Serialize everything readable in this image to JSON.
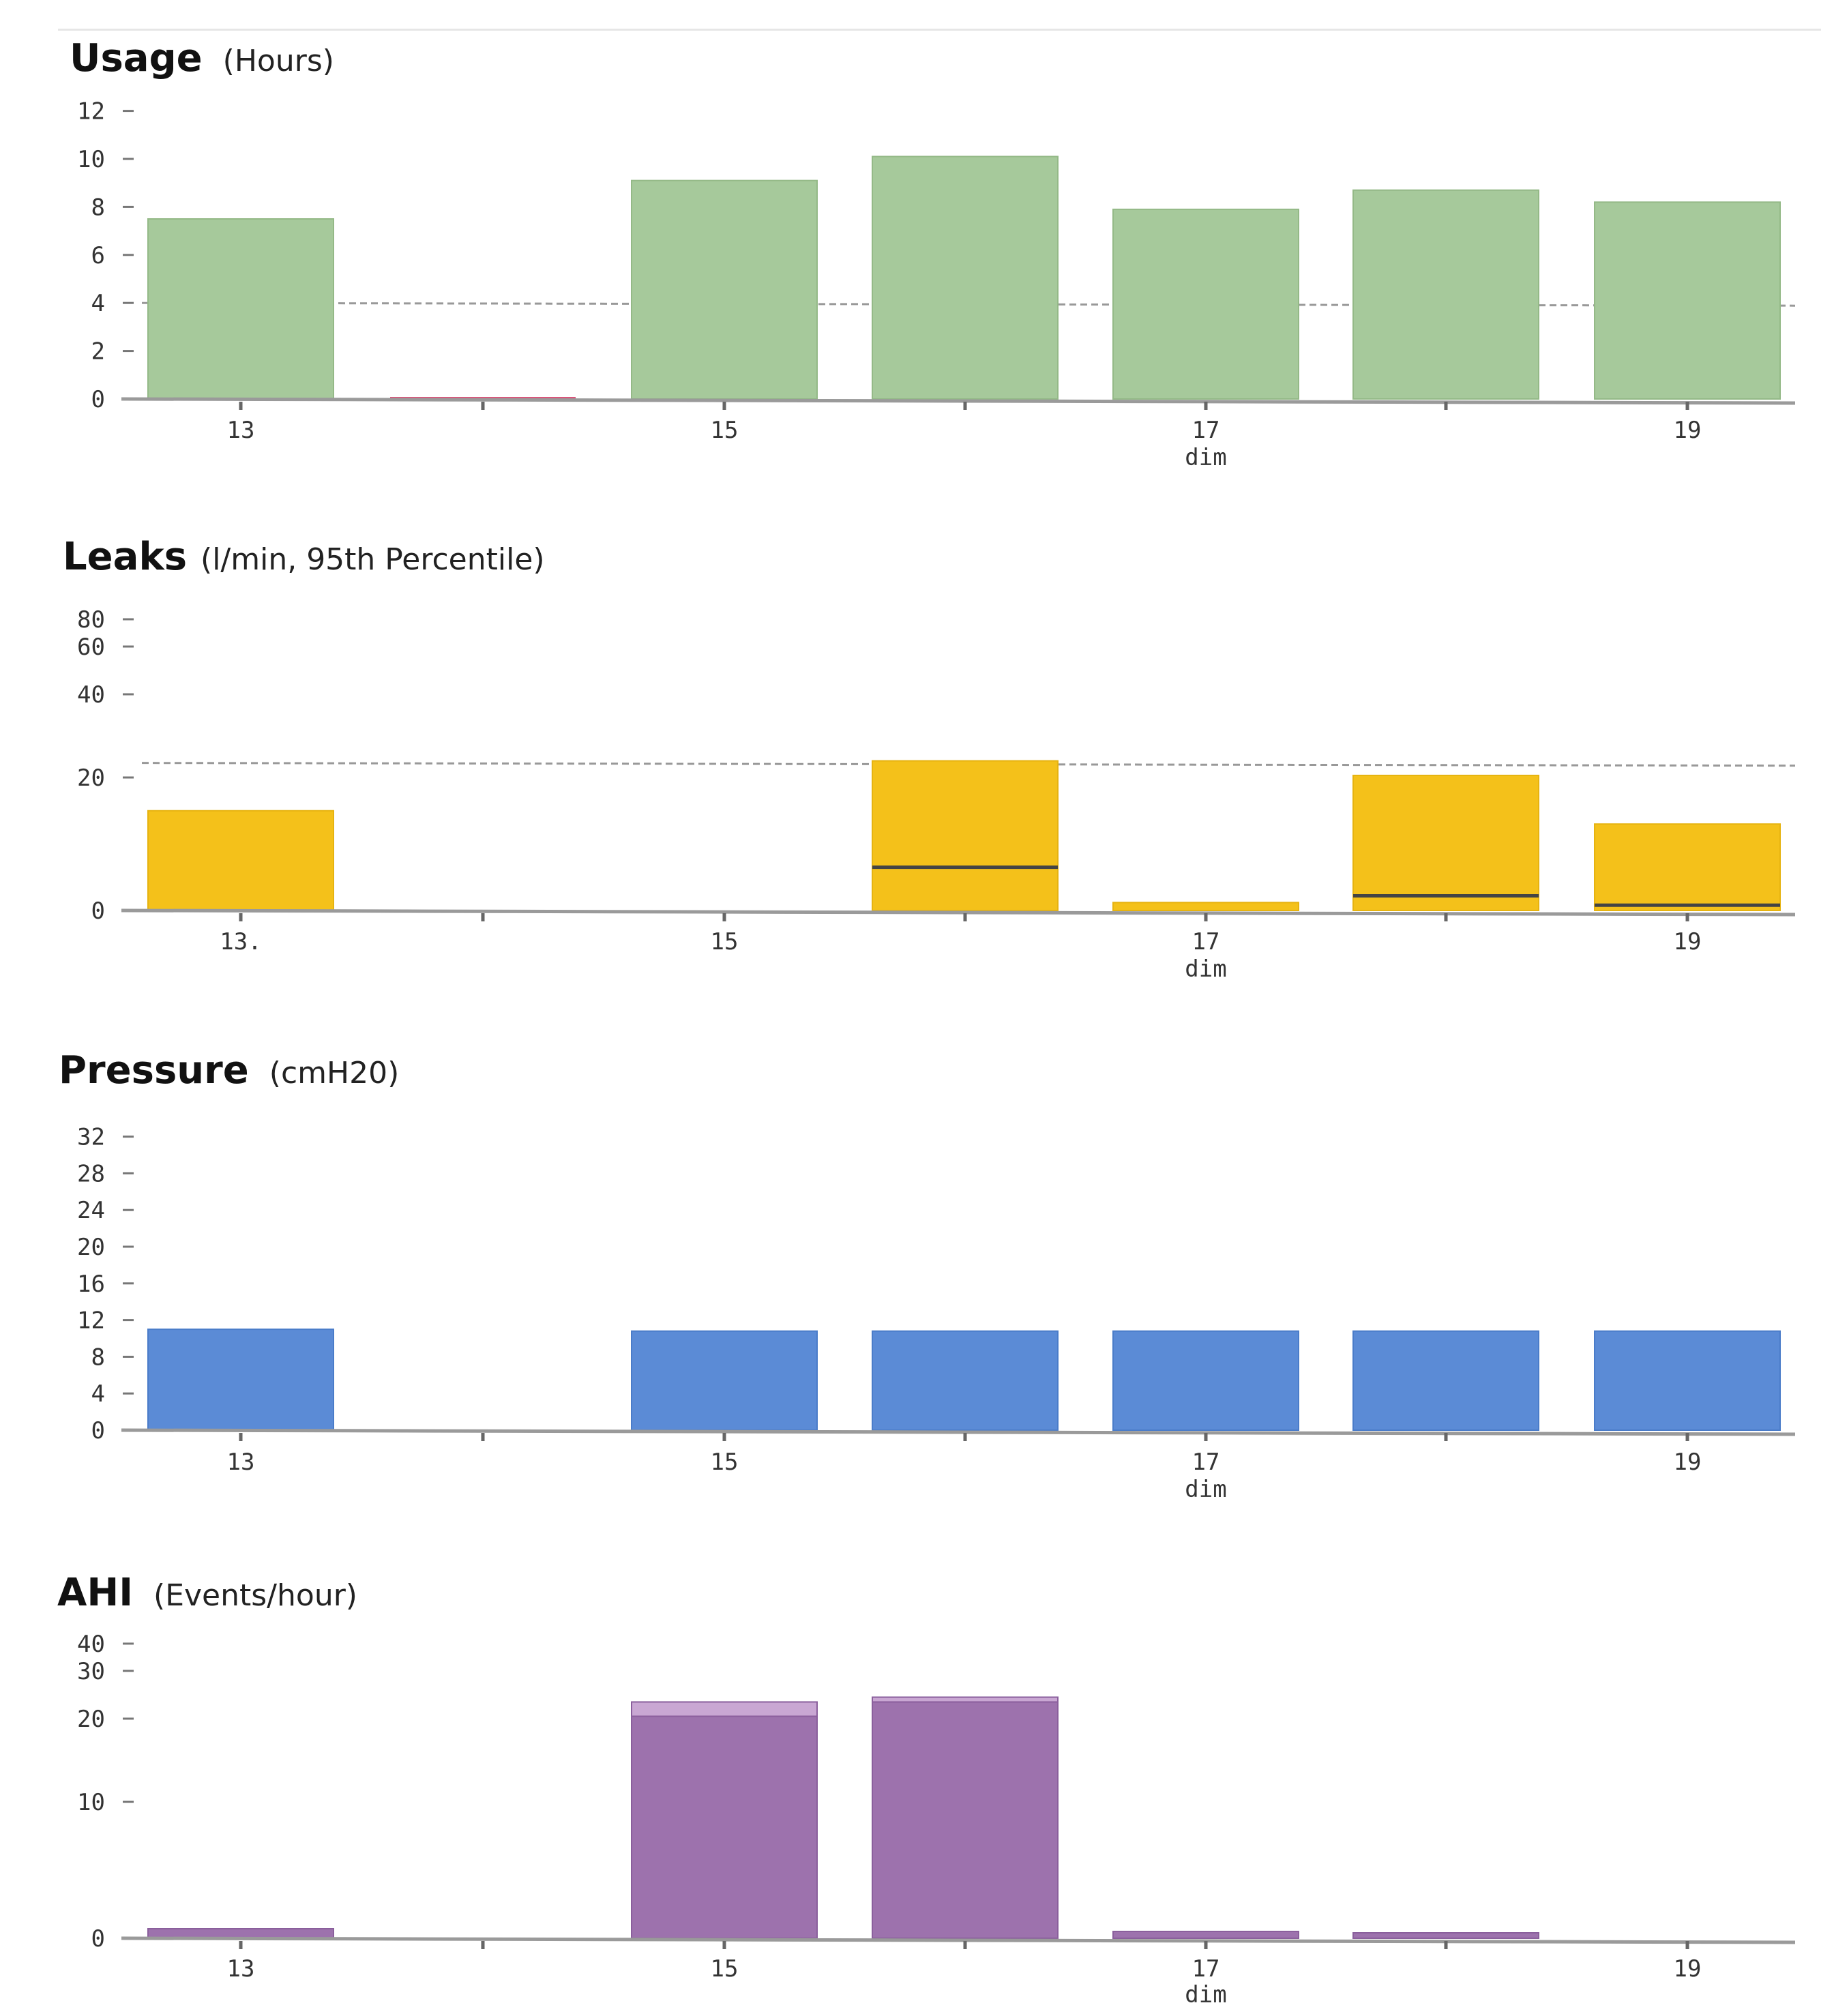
{
  "chart_data": [
    {
      "type": "bar",
      "title": "Usage",
      "unit": "(Hours)",
      "categories": [
        "13",
        "14",
        "15",
        "16",
        "17",
        "18",
        "19"
      ],
      "x_tick_labels": [
        "13",
        "15",
        "17",
        "19"
      ],
      "xlabel": "dim",
      "yticks": [
        0,
        2,
        4,
        6,
        8,
        10,
        12
      ],
      "ylim": [
        0,
        12
      ],
      "values": [
        7.5,
        0,
        9.1,
        10.1,
        7.9,
        8.7,
        8.2
      ],
      "reference_line": 4,
      "colors": {
        "bar": "#a6c99b",
        "bar_edge": "#94b987",
        "zero_marker": "#d9557a"
      }
    },
    {
      "type": "bar",
      "title": "Leaks",
      "unit": "(l/min, 95th Percentile)",
      "categories": [
        "13",
        "14",
        "15",
        "16",
        "17",
        "18",
        "19"
      ],
      "x_tick_labels": [
        "13.",
        "15",
        "17",
        "19"
      ],
      "xlabel": "dim",
      "yticks": [
        0,
        20,
        40,
        60,
        80
      ],
      "ylim": [
        0,
        80
      ],
      "values": [
        15,
        0,
        0,
        24,
        1.2,
        20.5,
        13
      ],
      "median_values": [
        null,
        null,
        null,
        6.5,
        null,
        2.2,
        0.8
      ],
      "reference_line": 23.5,
      "colors": {
        "bar": "#f4c11a",
        "bar_edge": "#e6b310"
      }
    },
    {
      "type": "bar",
      "title": "Pressure",
      "unit": "(cmH20)",
      "categories": [
        "13",
        "14",
        "15",
        "16",
        "17",
        "18",
        "19"
      ],
      "x_tick_labels": [
        "13",
        "15",
        "17",
        "19"
      ],
      "xlabel": "dim",
      "yticks": [
        0,
        4,
        8,
        12,
        16,
        20,
        24,
        28,
        32
      ],
      "ylim": [
        0,
        32
      ],
      "values": [
        11,
        0,
        10.8,
        10.8,
        10.8,
        10.8,
        10.8
      ],
      "colors": {
        "bar": "#5b8bd6",
        "bar_edge": "#4a7cc9"
      }
    },
    {
      "type": "bar",
      "title": "AHI",
      "unit": "(Events/hour)",
      "categories": [
        "13",
        "14",
        "15",
        "16",
        "17",
        "18",
        "19"
      ],
      "x_tick_labels": [
        "13",
        "15",
        "17",
        "19"
      ],
      "xlabel": "dim",
      "yticks": [
        0,
        10,
        20,
        30,
        40
      ],
      "ylim": [
        0,
        40
      ],
      "values": [
        0.7,
        0,
        20.5,
        23.5,
        0.5,
        0.4,
        0
      ],
      "upper_values": [
        0.7,
        0,
        23.5,
        24.5,
        0.5,
        0.4,
        0
      ],
      "colors": {
        "bar": "#9d72ad",
        "bar_upper": "#c9a7d3",
        "bar_edge": "#8a5f9c"
      }
    }
  ]
}
